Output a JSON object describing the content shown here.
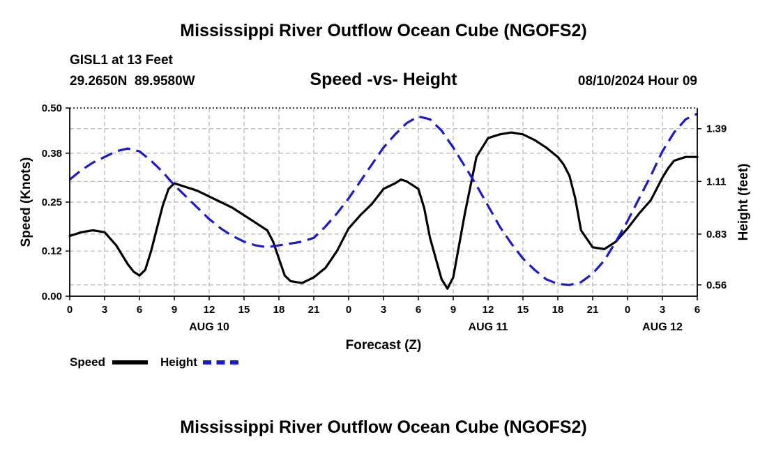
{
  "title": "Mississippi River Outflow Ocean Cube (NGOFS2)",
  "footer_title": "Mississippi River Outflow Ocean Cube (NGOFS2)",
  "station": {
    "name": "GISL1 at 13 Feet",
    "lat": "29.2650N",
    "lon": "89.9580W"
  },
  "datetime": "08/10/2024 Hour 09",
  "colors": {
    "speed": "#000000",
    "height": "#1a1acc",
    "grid": "#b0b0b0"
  },
  "chart_data": {
    "type": "line",
    "title": "Speed -vs- Height",
    "xlabel": "Forecast (Z)",
    "ylabel": "Speed (Knots)",
    "y2label": "Height (feet)",
    "xlim": [
      0,
      54
    ],
    "ylim": [
      0,
      0.5
    ],
    "y2lim": [
      0.5,
      1.5
    ],
    "grid": true,
    "x_ticks": [
      0,
      3,
      6,
      9,
      12,
      15,
      18,
      21,
      24,
      27,
      30,
      33,
      36,
      39,
      42,
      45,
      48,
      51,
      54
    ],
    "x_tick_labels": [
      "0",
      "3",
      "6",
      "9",
      "12",
      "15",
      "18",
      "21",
      "0",
      "3",
      "6",
      "9",
      "12",
      "15",
      "18",
      "21",
      "0",
      "3",
      "6"
    ],
    "date_labels": [
      {
        "x": 12,
        "label": "AUG 10"
      },
      {
        "x": 36,
        "label": "AUG 11"
      },
      {
        "x": 51,
        "label": "AUG 12"
      }
    ],
    "y_ticks": [
      0.0,
      0.12,
      0.25,
      0.38,
      0.5
    ],
    "y_tick_labels": [
      "0.00",
      "0.12",
      "0.25",
      "0.38",
      "0.50"
    ],
    "y2_ticks": [
      0.56,
      0.83,
      1.11,
      1.39
    ],
    "y2_tick_labels": [
      "0.56",
      "0.83",
      "1.11",
      "1.39"
    ],
    "legend": [
      {
        "name": "Speed",
        "style": "solid"
      },
      {
        "name": "Height",
        "style": "dashed"
      }
    ],
    "series": [
      {
        "name": "Speed",
        "axis": "left",
        "x": [
          0,
          1,
          2,
          3,
          4,
          5,
          5.5,
          6,
          6.5,
          7,
          8,
          8.5,
          9,
          10,
          11,
          12,
          13,
          14,
          15,
          16,
          17,
          17.5,
          18,
          18.5,
          19,
          20,
          21,
          22,
          23,
          24,
          25,
          26,
          26.5,
          27,
          28,
          28.5,
          29,
          29.5,
          30,
          30.5,
          31,
          32,
          32.5,
          33,
          34,
          35,
          36,
          37,
          38,
          39,
          40,
          41,
          42,
          42.5,
          43,
          43.5,
          44,
          45,
          46,
          47,
          48,
          49,
          50,
          50.5,
          51,
          51.5,
          52,
          53,
          54
        ],
        "values": [
          0.16,
          0.17,
          0.175,
          0.17,
          0.135,
          0.085,
          0.065,
          0.055,
          0.07,
          0.12,
          0.24,
          0.285,
          0.3,
          0.29,
          0.28,
          0.265,
          0.25,
          0.235,
          0.215,
          0.195,
          0.175,
          0.145,
          0.1,
          0.055,
          0.04,
          0.035,
          0.05,
          0.075,
          0.12,
          0.18,
          0.215,
          0.245,
          0.265,
          0.285,
          0.3,
          0.31,
          0.305,
          0.295,
          0.285,
          0.235,
          0.155,
          0.045,
          0.02,
          0.05,
          0.22,
          0.37,
          0.42,
          0.43,
          0.435,
          0.43,
          0.415,
          0.395,
          0.37,
          0.35,
          0.32,
          0.26,
          0.175,
          0.13,
          0.125,
          0.145,
          0.18,
          0.22,
          0.255,
          0.285,
          0.315,
          0.34,
          0.36,
          0.37,
          0.37
        ]
      },
      {
        "name": "Height",
        "axis": "right",
        "x": [
          0,
          1,
          2,
          3,
          4,
          5,
          6,
          7,
          8,
          9,
          10,
          11,
          12,
          13,
          14,
          15,
          16,
          17,
          18,
          19,
          20,
          21,
          22,
          23,
          24,
          25,
          26,
          27,
          28,
          29,
          30,
          31,
          32,
          33,
          34,
          35,
          36,
          37,
          38,
          39,
          40,
          41,
          42,
          43,
          44,
          45,
          46,
          47,
          48,
          49,
          50,
          51,
          52,
          53,
          54
        ],
        "values": [
          1.12,
          1.17,
          1.21,
          1.24,
          1.27,
          1.285,
          1.27,
          1.22,
          1.16,
          1.09,
          1.03,
          0.97,
          0.91,
          0.86,
          0.82,
          0.79,
          0.77,
          0.76,
          0.77,
          0.78,
          0.79,
          0.81,
          0.87,
          0.94,
          1.02,
          1.11,
          1.2,
          1.29,
          1.36,
          1.42,
          1.455,
          1.44,
          1.38,
          1.29,
          1.19,
          1.09,
          0.98,
          0.87,
          0.78,
          0.7,
          0.64,
          0.59,
          0.565,
          0.56,
          0.575,
          0.62,
          0.69,
          0.79,
          0.9,
          1.02,
          1.14,
          1.27,
          1.37,
          1.44,
          1.47
        ]
      }
    ]
  }
}
